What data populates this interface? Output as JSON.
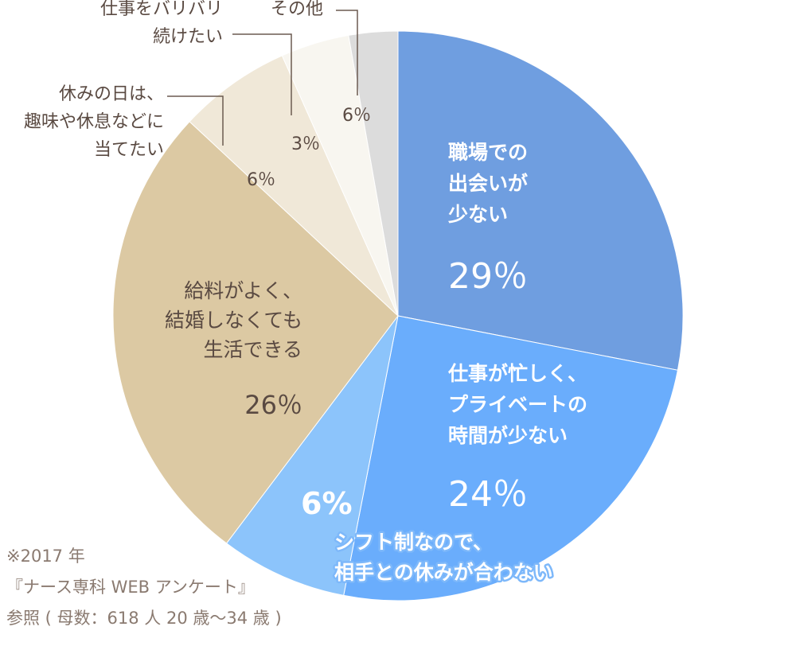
{
  "chart_data": {
    "type": "pie",
    "slices": [
      {
        "label": [
          "職場での",
          "出会いが",
          "少ない"
        ],
        "value": 29,
        "display": "29％",
        "color": "#6f9ee0"
      },
      {
        "label": [
          "仕事が忙しく、",
          "プライベートの",
          "時間が少ない"
        ],
        "value": 24,
        "display": "24％",
        "color": "#6aadfc"
      },
      {
        "label": [
          "シフト制なので、",
          "相手との休みが合わない"
        ],
        "value": 6,
        "display": "6%",
        "color": "#8cc4fb"
      },
      {
        "label": [
          "給料がよく、",
          "結婚しなくても",
          "生活できる"
        ],
        "value": 26,
        "display": "26％",
        "color": "#dcc9a3"
      },
      {
        "label": [
          "休みの日は、",
          "趣味や休息などに",
          "当てたい"
        ],
        "value": 6,
        "display": "6％",
        "color": "#f0e8d8"
      },
      {
        "label": [
          "仕事をバリバリ",
          "続けたい"
        ],
        "value": 3,
        "display": "3％",
        "color": "#f8f6f0"
      },
      {
        "label": [
          "その他"
        ],
        "value": 6,
        "display": "6％",
        "color": "#dcdcdc"
      }
    ],
    "label_color_dark": "#5a4a42",
    "label_color_light": "#ffffff",
    "leader_color": "#6b5a50"
  },
  "source": {
    "line1": "※2017 年",
    "line2": "『ナース専科 WEB アンケート』",
    "line3": "参照 ( 母数：618 人 20 歳〜34 歳 )"
  }
}
